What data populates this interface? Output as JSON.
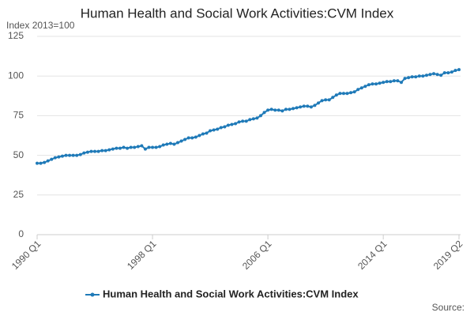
{
  "chart_data": {
    "type": "line",
    "title": "Human Health and Social Work Activities:CVM Index",
    "y_label": "Index 2013=100",
    "source": "Source:",
    "categories": [
      "1990 Q1",
      null,
      null,
      null,
      null,
      null,
      null,
      null,
      null,
      null,
      null,
      null,
      null,
      null,
      null,
      null,
      null,
      null,
      null,
      null,
      null,
      null,
      null,
      null,
      null,
      null,
      null,
      null,
      null,
      null,
      null,
      null,
      "1998 Q1",
      null,
      null,
      null,
      null,
      null,
      null,
      null,
      null,
      null,
      null,
      null,
      null,
      null,
      null,
      null,
      null,
      null,
      null,
      null,
      null,
      null,
      null,
      null,
      null,
      null,
      null,
      null,
      null,
      null,
      null,
      null,
      "2006 Q1",
      null,
      null,
      null,
      null,
      null,
      null,
      null,
      null,
      null,
      null,
      null,
      null,
      null,
      null,
      null,
      null,
      null,
      null,
      null,
      null,
      null,
      null,
      null,
      null,
      null,
      null,
      null,
      null,
      null,
      null,
      null,
      "2014 Q1",
      null,
      null,
      null,
      null,
      null,
      null,
      null,
      null,
      null,
      null,
      null,
      null,
      null,
      null,
      null,
      null,
      null,
      null,
      null,
      null,
      "2019 Q2"
    ],
    "series": [
      {
        "name": "Human Health and Social Work Activities:CVM Index",
        "color": "#1f7ab8",
        "values": [
          45,
          45,
          45.5,
          46.5,
          47.5,
          48.5,
          49,
          49.5,
          50,
          50,
          50,
          50,
          50.5,
          51.5,
          52,
          52.5,
          52.5,
          52.5,
          53,
          53,
          53.5,
          54,
          54.5,
          54.5,
          55,
          54.5,
          55,
          55,
          55.5,
          56,
          54,
          55,
          55,
          55,
          55.5,
          56.5,
          57,
          57.5,
          57,
          58,
          59,
          60,
          61,
          61,
          61.5,
          62.5,
          63.5,
          64,
          65.5,
          66,
          66.5,
          67.5,
          68,
          69,
          69.5,
          70,
          71,
          71.5,
          71.5,
          72.5,
          73,
          73.5,
          75,
          77,
          78.5,
          79,
          78.5,
          78.5,
          78,
          79,
          79,
          79.5,
          80,
          80.5,
          81,
          81,
          80.5,
          81.5,
          83,
          84.5,
          85,
          85,
          86.5,
          88,
          89,
          89,
          89,
          89.5,
          90,
          91.5,
          92.5,
          93.5,
          94.5,
          95,
          95,
          95.5,
          96,
          96.5,
          96.5,
          97,
          97,
          96,
          98.5,
          99,
          99.5,
          99.5,
          100,
          100,
          100.5,
          101,
          101.5,
          101,
          100.5,
          102,
          102,
          102.5,
          103.5,
          104
        ]
      }
    ],
    "ylim": [
      0,
      125
    ],
    "yticks": [
      0,
      25,
      50,
      75,
      100,
      125
    ],
    "grid": true
  }
}
